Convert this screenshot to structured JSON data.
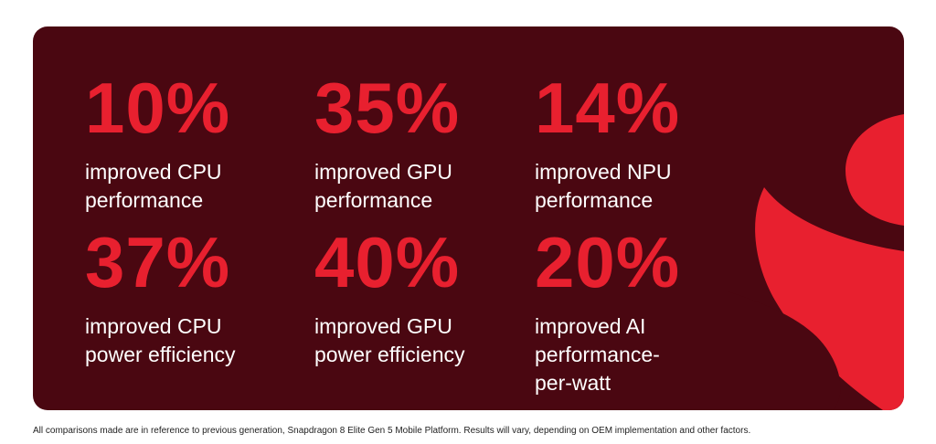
{
  "stats": [
    {
      "value": "10%",
      "line1": "improved CPU",
      "line2": "performance",
      "line3": ""
    },
    {
      "value": "35%",
      "line1": "improved GPU",
      "line2": "performance",
      "line3": ""
    },
    {
      "value": "14%",
      "line1": "improved NPU",
      "line2": "performance",
      "line3": ""
    },
    {
      "value": "37%",
      "line1": "improved CPU",
      "line2": "power efficiency",
      "line3": ""
    },
    {
      "value": "40%",
      "line1": "improved GPU",
      "line2": "power efficiency",
      "line3": ""
    },
    {
      "value": "20%",
      "line1": "improved AI",
      "line2": "performance-",
      "line3": "per-watt"
    }
  ],
  "footnote": "All comparisons made are in reference to previous generation, Snapdragon 8 Elite Gen 5 Mobile Platform. Results will vary, depending on OEM implementation and other factors.",
  "colors": {
    "panel": "#4a0711",
    "accent": "#e8202f",
    "text": "#ffffff"
  },
  "logo_icon": "snapdragon-flame-logo"
}
